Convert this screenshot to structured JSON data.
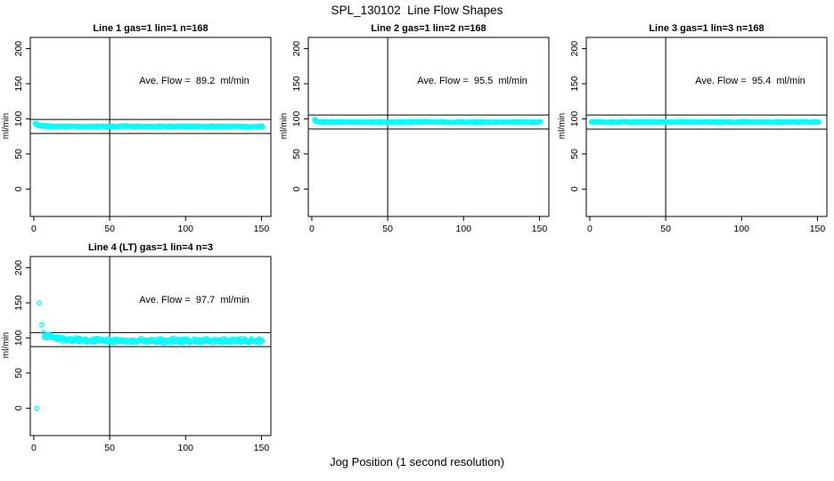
{
  "page": {
    "title": "SPL_130102  Line Flow Shapes",
    "xlabel": "Jog Position (1 second resolution)",
    "background": "#ffffff",
    "marker_color": "#00FFFF",
    "line_color": "#000000"
  },
  "chart_data": [
    {
      "type": "scatter",
      "title": "Line 1 gas=1 lin=1 n=168",
      "annotation": "Ave. Flow =  89.2  ml/min",
      "ave_flow": 89.2,
      "n": 168,
      "ylabel": "ml/min",
      "xticks": [
        0,
        50,
        100,
        150
      ],
      "yticks": [
        0,
        50,
        100,
        150,
        200
      ],
      "xlim": [
        -2.3,
        156.2
      ],
      "ylim": [
        -39,
        216
      ],
      "vline_x": 50,
      "hlines": [
        99.2,
        79.2
      ],
      "outlier_points": [
        [
          0.8,
          93.5
        ]
      ],
      "band": {
        "x_start": 1.5,
        "x_end": 151,
        "level": 89.2,
        "start_level": 93,
        "tau": 2.5,
        "noise": 0.7,
        "step": 0.5
      }
    },
    {
      "type": "scatter",
      "title": "Line 2 gas=1 lin=2 n=168",
      "annotation": "Ave. Flow =  95.5  ml/min",
      "ave_flow": 95.5,
      "n": 168,
      "ylabel": "ml/min",
      "xticks": [
        0,
        50,
        100,
        150
      ],
      "yticks": [
        0,
        50,
        100,
        150,
        200
      ],
      "xlim": [
        -2.3,
        156.2
      ],
      "ylim": [
        -39,
        216
      ],
      "vline_x": 50,
      "hlines": [
        105.5,
        85.5
      ],
      "outlier_points": [
        [
          2.2,
          99.5
        ]
      ],
      "band": {
        "x_start": 1.8,
        "x_end": 151,
        "level": 95.3,
        "start_level": 97.5,
        "tau": 2,
        "noise": 0.7,
        "step": 0.5
      }
    },
    {
      "type": "scatter",
      "title": "Line 3 gas=1 lin=3 n=168",
      "annotation": "Ave. Flow =  95.4  ml/min",
      "ave_flow": 95.4,
      "n": 168,
      "ylabel": "ml/min",
      "xticks": [
        0,
        50,
        100,
        150
      ],
      "yticks": [
        0,
        50,
        100,
        150,
        200
      ],
      "xlim": [
        -2.3,
        156.2
      ],
      "ylim": [
        -39,
        216
      ],
      "vline_x": 50,
      "hlines": [
        105.4,
        85.4
      ],
      "outlier_points": [],
      "band": {
        "x_start": 1,
        "x_end": 151,
        "level": 95.4,
        "start_level": 95.4,
        "tau": 1,
        "noise": 0.7,
        "step": 0.5
      }
    },
    {
      "type": "scatter",
      "title": "Line 4 (LT) gas=1 lin=4 n=3",
      "annotation": "Ave. Flow =  97.7  ml/min",
      "ave_flow": 97.7,
      "n": 3,
      "ylabel": "ml/min",
      "xticks": [
        0,
        50,
        100,
        150
      ],
      "yticks": [
        0,
        50,
        100,
        150,
        200
      ],
      "xlim": [
        -2.3,
        156.2
      ],
      "ylim": [
        -39,
        216
      ],
      "vline_x": 50,
      "hlines": [
        107.7,
        87.7
      ],
      "outlier_points": [
        [
          1.9,
          0
        ],
        [
          3.5,
          150
        ],
        [
          5.3,
          119
        ],
        [
          6.4,
          108
        ]
      ],
      "band": {
        "x_start": 7,
        "x_end": 151,
        "level": 96,
        "start_level": 104,
        "tau": 11,
        "noise": 2.2,
        "step": 0.4
      }
    }
  ]
}
